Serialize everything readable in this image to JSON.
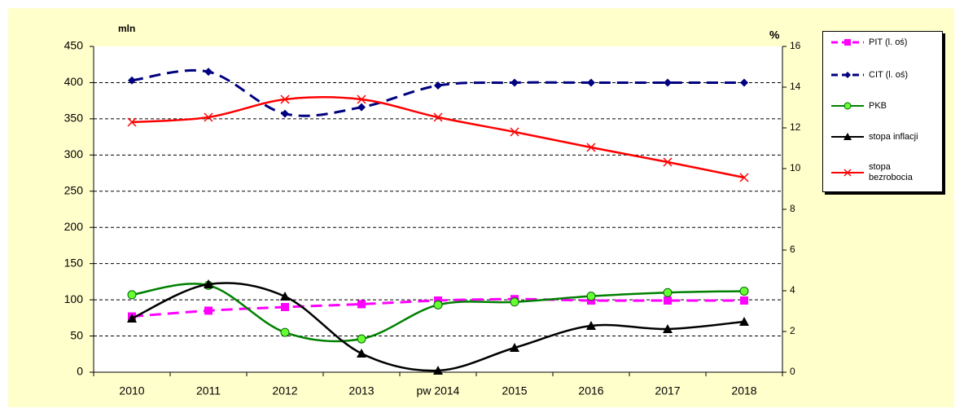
{
  "chart_data": {
    "type": "line",
    "ylabel": "mln",
    "y2label": "%",
    "categories": [
      "2010",
      "2011",
      "2012",
      "2013",
      "pw 2014",
      "2015",
      "2016",
      "2017",
      "2018"
    ],
    "ylim": [
      0,
      450
    ],
    "yticks": [
      0,
      50,
      100,
      150,
      200,
      250,
      300,
      350,
      400,
      450
    ],
    "y2lim": [
      0,
      16
    ],
    "y2ticks": [
      0,
      2,
      4,
      6,
      8,
      10,
      12,
      14,
      16
    ],
    "grid": true,
    "legend": "right",
    "series": [
      {
        "name": "PIT (l. oś)",
        "color": "#ff00ff",
        "dash": true,
        "marker": "square",
        "marker_color": "#ff00ff",
        "values": [
          77,
          85,
          90,
          94,
          99,
          101,
          99,
          99,
          99
        ]
      },
      {
        "name": "CIT (l. oś)",
        "color": "#000080",
        "dash": true,
        "marker": "diamond",
        "marker_color": "#000080",
        "values": [
          403,
          415,
          357,
          366,
          396,
          400,
          400,
          400,
          400
        ]
      },
      {
        "name": "PKB",
        "color": "#008000",
        "dash": false,
        "marker": "circle",
        "marker_color": "#66ff33",
        "values": [
          107,
          120,
          55,
          46,
          93,
          97,
          105,
          110,
          112
        ]
      },
      {
        "name": "stopa inflacji",
        "color": "#000000",
        "dash": false,
        "marker": "triangle",
        "marker_color": "#000000",
        "axis": "y2",
        "values": [
          2.64,
          4.32,
          3.72,
          0.92,
          0.08,
          1.2,
          2.28,
          2.12,
          2.48
        ]
      },
      {
        "name": "stopa bezrobocia",
        "color": "#ff0000",
        "dash": false,
        "marker": "x",
        "marker_color": "#ff0000",
        "axis": "y2",
        "values": [
          12.28,
          12.52,
          13.4,
          13.4,
          12.52,
          11.8,
          11.04,
          10.32,
          9.56
        ]
      }
    ]
  }
}
